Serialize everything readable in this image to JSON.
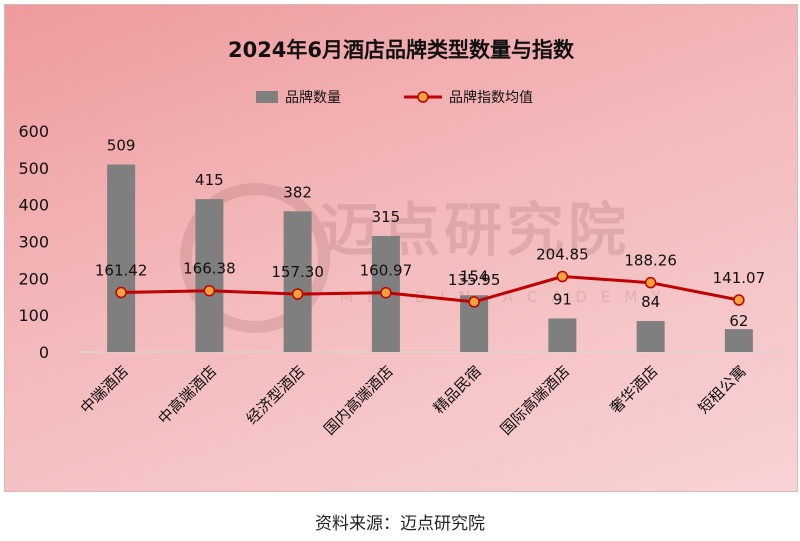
{
  "chart_data": {
    "type": "bar",
    "title": "2024年6月酒店品牌类型数量与指数",
    "categories": [
      "中端酒店",
      "中高端酒店",
      "经济型酒店",
      "国内高端酒店",
      "精品民宿",
      "国际高端酒店",
      "奢华酒店",
      "短租公寓"
    ],
    "series": [
      {
        "name": "品牌数量",
        "type": "bar",
        "values": [
          509,
          415,
          382,
          315,
          154,
          91,
          84,
          62
        ],
        "color": "#7f7f7f"
      },
      {
        "name": "品牌指数均值",
        "type": "line",
        "values": [
          161.42,
          166.38,
          157.3,
          160.97,
          135.95,
          204.85,
          188.26,
          141.07
        ],
        "color": "#c00000",
        "marker_color": "#f4a23c"
      }
    ],
    "value_labels": {
      "bars": [
        "509",
        "415",
        "382",
        "315",
        "154",
        "91",
        "84",
        "62"
      ],
      "line": [
        "161.42",
        "166.38",
        "157.30",
        "160.97",
        "135.95",
        "204.85",
        "188.26",
        "141.07"
      ]
    },
    "ylim": [
      0,
      600
    ],
    "yticks": [
      "0",
      "100",
      "200",
      "300",
      "400",
      "500",
      "600"
    ],
    "legend_position": "top-center",
    "grid": false
  },
  "watermark": {
    "text": "迈点研究院",
    "subtext": "MEADIN ACADEMY"
  },
  "source": "资料来源：迈点研究院"
}
